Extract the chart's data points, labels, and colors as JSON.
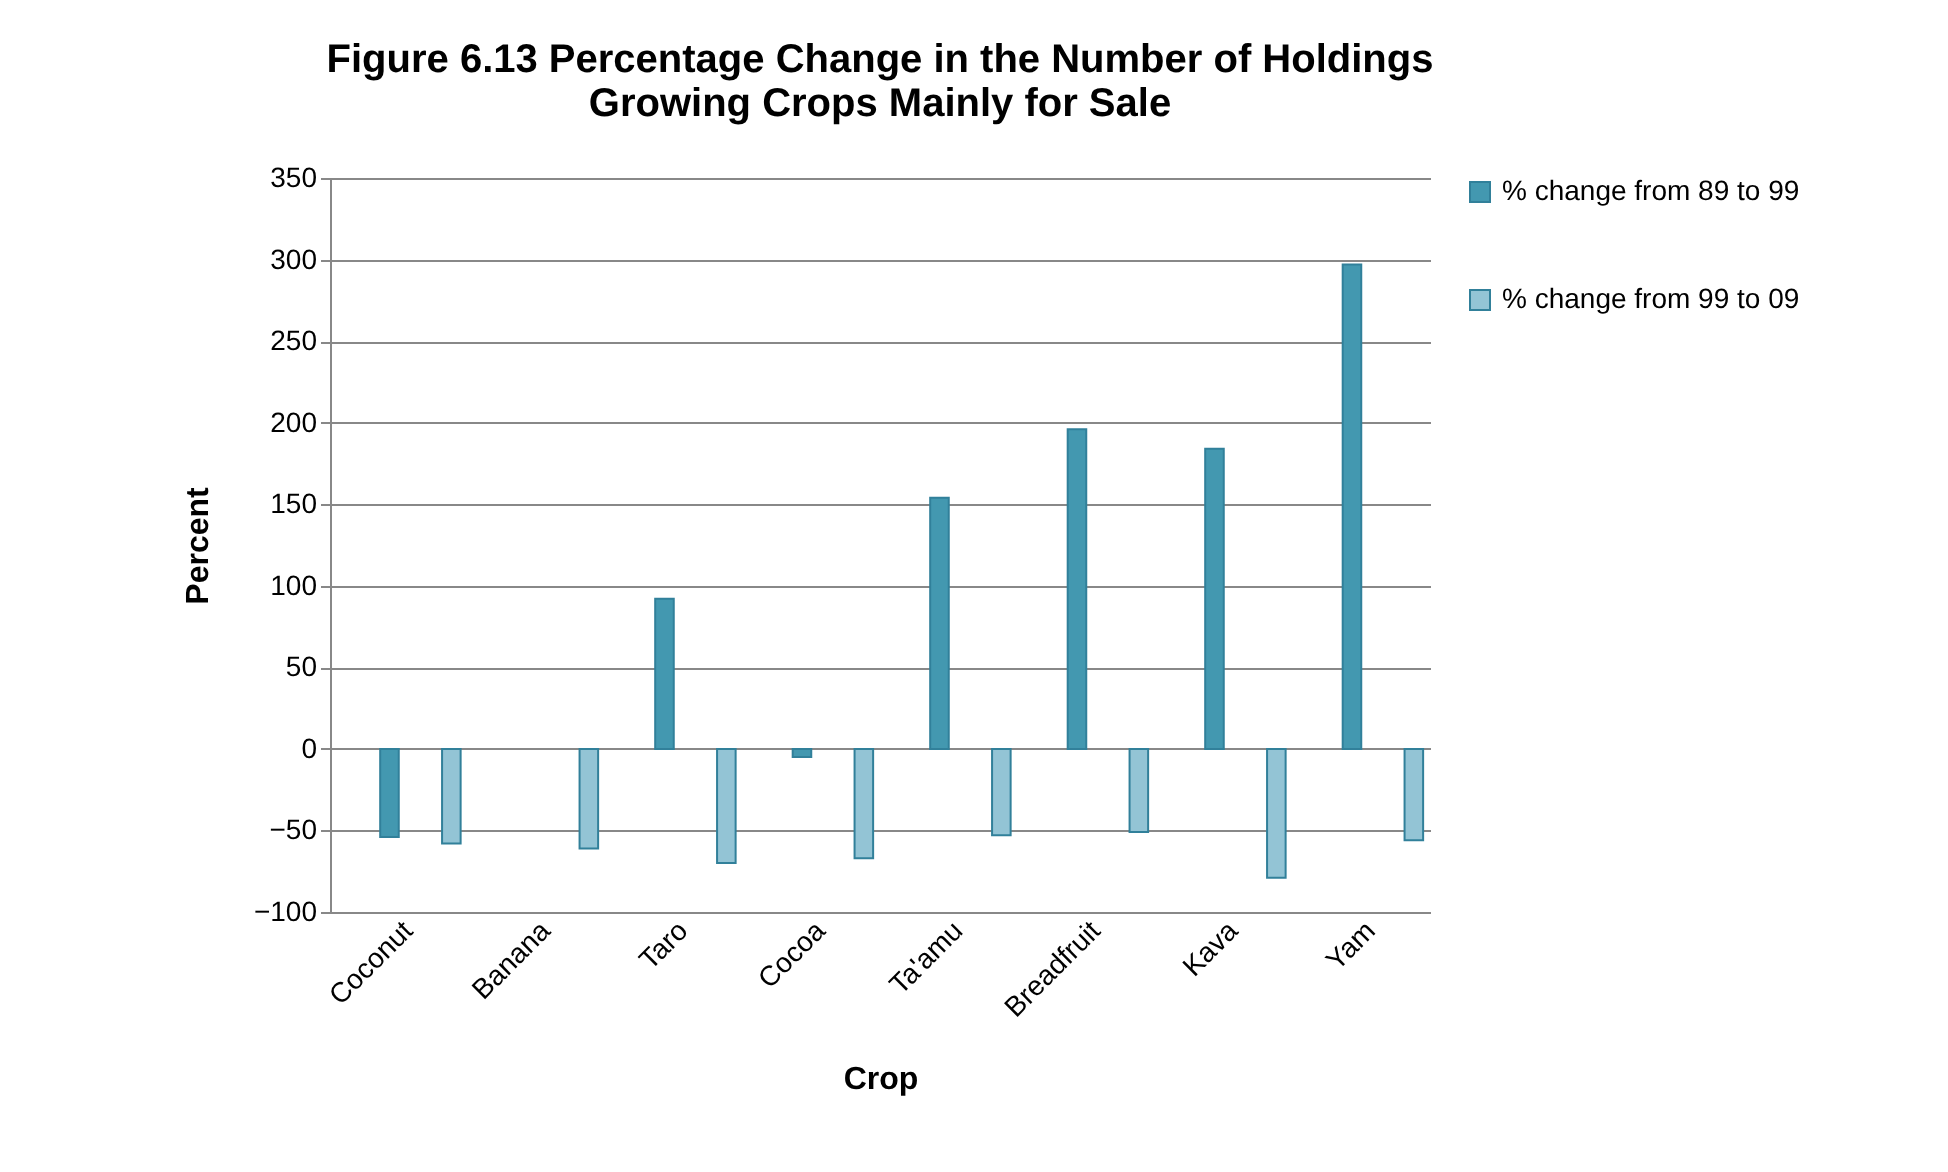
{
  "chart_data": {
    "type": "bar",
    "title": "Figure 6.13 Percentage Change in the Number of Holdings Growing Crops Mainly for Sale",
    "xlabel": "Crop",
    "ylabel": "Percent",
    "categories": [
      "Coconut",
      "Banana",
      "Taro",
      "Cocoa",
      "Ta'amu",
      "Breadfruit",
      "Kava",
      "Yam"
    ],
    "series": [
      {
        "name": "% change from 89 to 99",
        "color": "#4398b0",
        "values": [
          -54,
          null,
          92,
          -5,
          154,
          196,
          184,
          297
        ]
      },
      {
        "name": "% change from 99 to 09",
        "color": "#93c4d5",
        "values": [
          -58,
          -61,
          -70,
          -67,
          -53,
          -51,
          -79,
          -56
        ]
      }
    ],
    "ylim": [
      -100,
      350
    ],
    "yticks": [
      -100,
      -50,
      0,
      50,
      100,
      150,
      200,
      250,
      300,
      350
    ],
    "grid": "y",
    "legend": "right"
  }
}
